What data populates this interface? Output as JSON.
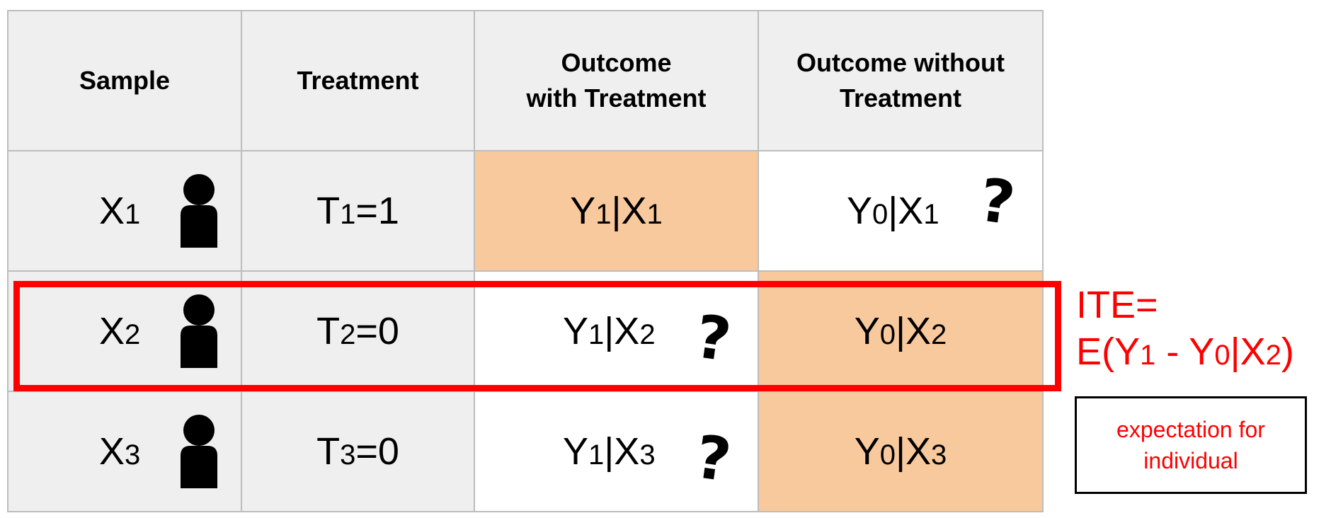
{
  "headers": {
    "sample": "Sample",
    "treatment": "Treatment",
    "outcome_with_line1": "Outcome",
    "outcome_with_line2": "with Treatment",
    "outcome_without_line1": "Outcome without",
    "outcome_without_line2": "Treatment"
  },
  "rows": [
    {
      "sample_base": "X",
      "sample_sub": "1",
      "treatment_base": "T",
      "treatment_sub": "1",
      "treatment_rest": "=1",
      "with_y": "Y",
      "with_y_sub": "1",
      "with_x": "|X",
      "with_x_sub": "1",
      "with_unknown": "",
      "without_y": "Y",
      "without_y_sub": "0",
      "without_x": "|X",
      "without_x_sub": "1",
      "without_unknown": "?"
    },
    {
      "sample_base": "X",
      "sample_sub": "2",
      "treatment_base": "T",
      "treatment_sub": "2",
      "treatment_rest": "=0",
      "with_y": "Y",
      "with_y_sub": "1",
      "with_x": "|X",
      "with_x_sub": "2",
      "with_unknown": "?",
      "without_y": "Y",
      "without_y_sub": "0",
      "without_x": "|X",
      "without_x_sub": "2",
      "without_unknown": ""
    },
    {
      "sample_base": "X",
      "sample_sub": "3",
      "treatment_base": "T",
      "treatment_sub": "3",
      "treatment_rest": "=0",
      "with_y": "Y",
      "with_y_sub": "1",
      "with_x": "|X",
      "with_x_sub": "3",
      "with_unknown": "?",
      "without_y": "Y",
      "without_y_sub": "0",
      "without_x": "|X",
      "without_x_sub": "3",
      "without_unknown": ""
    }
  ],
  "ite": {
    "line1": "ITE=",
    "line2_a": "E(Y",
    "line2_sub1": "1",
    "line2_b": " - Y",
    "line2_sub0": "0",
    "line2_c": "|X",
    "line2_sub2": "2",
    "line2_d": ")"
  },
  "note": {
    "line1": "expectation for",
    "line2": "individual"
  },
  "colors": {
    "header_bg": "#efefef",
    "observed_bg": "#f8c99c",
    "highlight": "#ff0000",
    "grid": "#bdbdbd"
  },
  "icons": {
    "person": "person-icon",
    "unknown": "question-mark-icon"
  }
}
